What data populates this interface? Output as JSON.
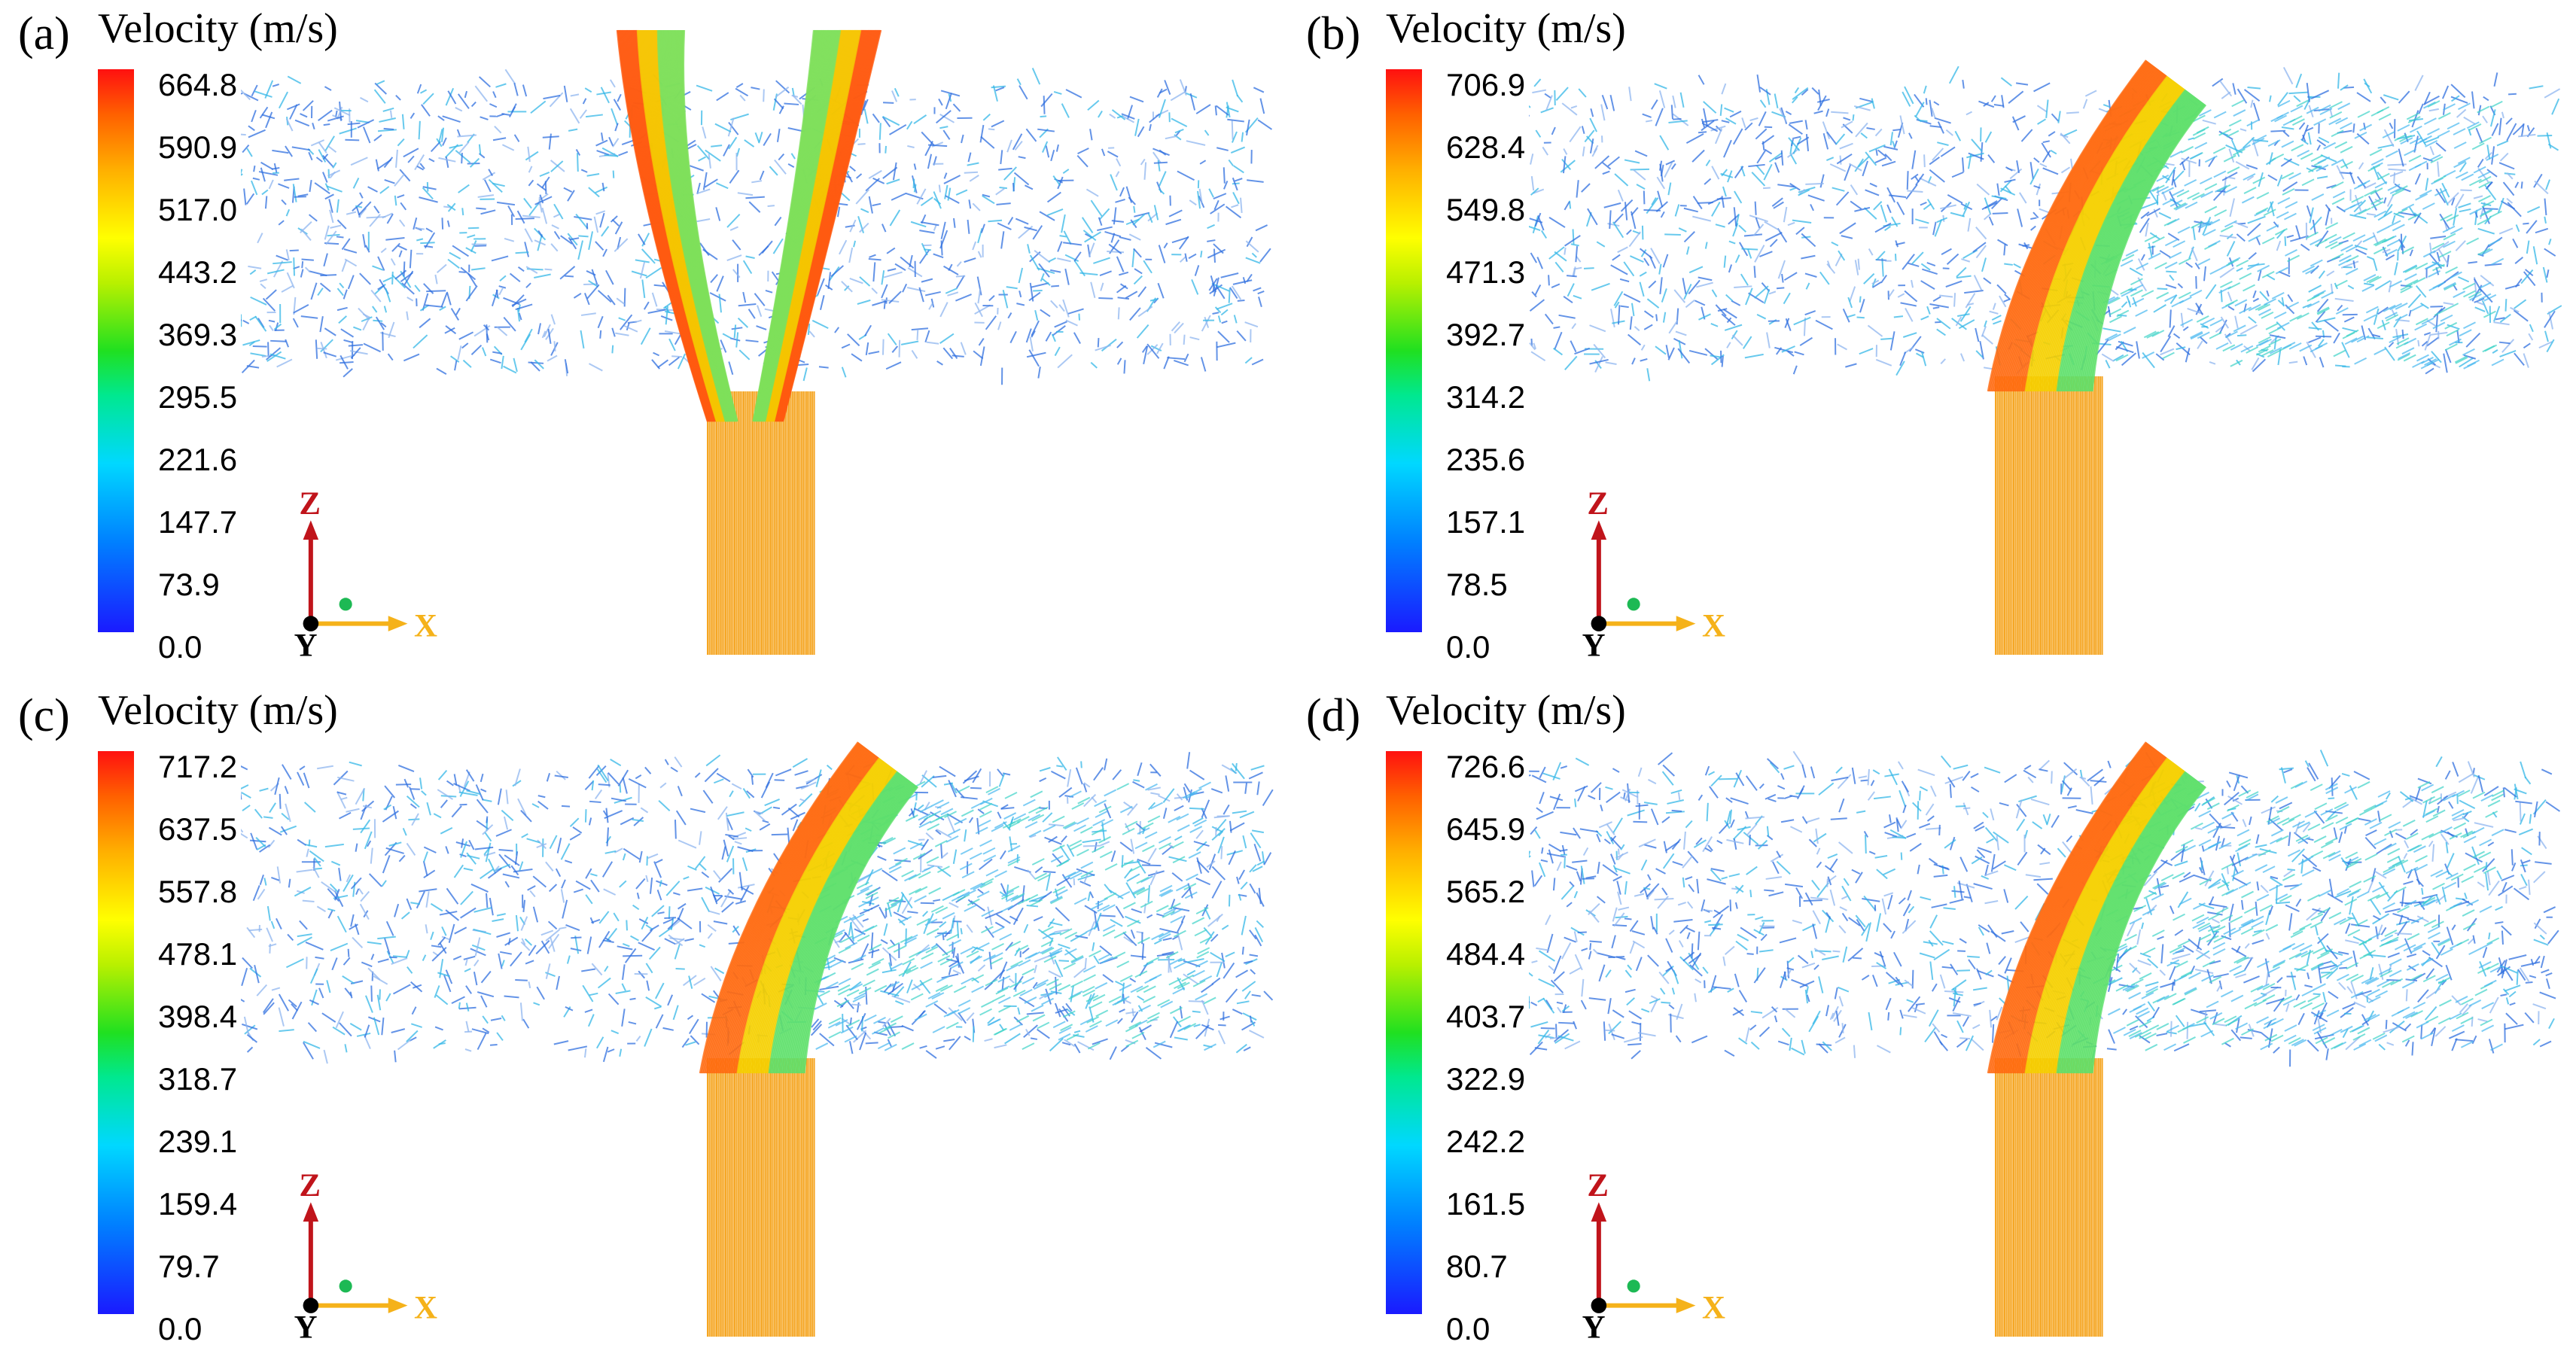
{
  "panels": [
    {
      "label": "(a)",
      "cb_title": "Velocity (m/s)",
      "ticks": [
        "664.8",
        "590.9",
        "517.0",
        "443.2",
        "369.3",
        "295.5",
        "221.6",
        "147.7",
        "73.9",
        "0.0"
      ],
      "jet": "vertical-split"
    },
    {
      "label": "(b)",
      "cb_title": "Velocity (m/s)",
      "ticks": [
        "706.9",
        "628.4",
        "549.8",
        "471.3",
        "392.7",
        "314.2",
        "235.6",
        "157.1",
        "78.5",
        "0.0"
      ],
      "jet": "inclined"
    },
    {
      "label": "(c)",
      "cb_title": "Velocity (m/s)",
      "ticks": [
        "717.2",
        "637.5",
        "557.8",
        "478.1",
        "398.4",
        "318.7",
        "239.1",
        "159.4",
        "79.7",
        "0.0"
      ],
      "jet": "inclined"
    },
    {
      "label": "(d)",
      "cb_title": "Velocity (m/s)",
      "ticks": [
        "726.6",
        "645.9",
        "565.2",
        "484.4",
        "403.7",
        "322.9",
        "242.2",
        "161.5",
        "80.7",
        "0.0"
      ],
      "jet": "inclined"
    }
  ],
  "axes": {
    "z": "Z",
    "x": "X",
    "y": "Y"
  },
  "colors": {
    "z_arrow": "#c0141b",
    "x_arrow": "#f5b21a",
    "origin": "#000000",
    "dot": "#1db954"
  }
}
